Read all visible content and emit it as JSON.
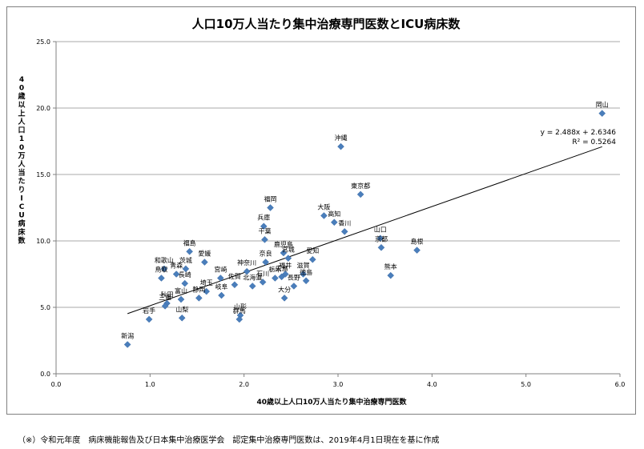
{
  "chart_data": {
    "type": "scatter",
    "title": "人口10万人当たり集中治療専門医数とICU病床数",
    "xlabel": "40歳以上人口10万人当たり集中治療専門医数",
    "ylabel": "40歳以上人口10万人当たりICU病床数",
    "xlim": [
      0.0,
      6.0
    ],
    "ylim": [
      0.0,
      25.0
    ],
    "x_ticks": [
      "0.0",
      "1.0",
      "2.0",
      "3.0",
      "4.0",
      "5.0",
      "6.0"
    ],
    "y_ticks": [
      "0.0",
      "5.0",
      "10.0",
      "15.0",
      "20.0",
      "25.0"
    ],
    "grid": "horizontal",
    "marker_color": "#4a7ebb",
    "trendline": {
      "slope": 2.488,
      "intercept": 2.6346,
      "equation": "y = 2.488x + 2.6346",
      "r2": "R² = 0.5264"
    },
    "points": [
      {
        "label": "岡山",
        "x": 5.81,
        "y": 19.6
      },
      {
        "label": "沖縄",
        "x": 3.03,
        "y": 17.1
      },
      {
        "label": "東京都",
        "x": 3.24,
        "y": 13.5
      },
      {
        "label": "福岡",
        "x": 2.28,
        "y": 12.5
      },
      {
        "label": "大阪",
        "x": 2.85,
        "y": 11.9
      },
      {
        "label": "兵庫",
        "x": 2.21,
        "y": 11.1
      },
      {
        "label": "高知",
        "x": 2.96,
        "y": 11.4
      },
      {
        "label": "千葉",
        "x": 2.22,
        "y": 10.1
      },
      {
        "label": "香川",
        "x": 3.07,
        "y": 10.7
      },
      {
        "label": "山口",
        "x": 3.45,
        "y": 10.2
      },
      {
        "label": "島根",
        "x": 3.84,
        "y": 9.3
      },
      {
        "label": "京都",
        "x": 3.46,
        "y": 9.5
      },
      {
        "label": "鹿児島",
        "x": 2.42,
        "y": 9.1
      },
      {
        "label": "愛知",
        "x": 2.73,
        "y": 8.6
      },
      {
        "label": "福島",
        "x": 1.42,
        "y": 9.2
      },
      {
        "label": "愛媛",
        "x": 1.58,
        "y": 8.4
      },
      {
        "label": "和歌山",
        "x": 1.15,
        "y": 7.9
      },
      {
        "label": "茨城",
        "x": 1.38,
        "y": 7.9
      },
      {
        "label": "奈良",
        "x": 2.23,
        "y": 8.4
      },
      {
        "label": "神奈川",
        "x": 2.03,
        "y": 7.7
      },
      {
        "label": "宮崎",
        "x": 1.75,
        "y": 7.2
      },
      {
        "label": "青森",
        "x": 1.28,
        "y": 7.5
      },
      {
        "label": "鳥取",
        "x": 1.12,
        "y": 7.2
      },
      {
        "label": "滋賀",
        "x": 2.63,
        "y": 7.5
      },
      {
        "label": "栃木",
        "x": 2.33,
        "y": 7.2
      },
      {
        "label": "広島",
        "x": 2.4,
        "y": 7.3
      },
      {
        "label": "宮城",
        "x": 2.47,
        "y": 8.7
      },
      {
        "label": "埼玉",
        "x": 1.6,
        "y": 6.2
      },
      {
        "label": "長崎",
        "x": 1.37,
        "y": 6.8
      },
      {
        "label": "佐賀",
        "x": 1.9,
        "y": 6.7
      },
      {
        "label": "石川",
        "x": 2.2,
        "y": 6.9
      },
      {
        "label": "福井",
        "x": 2.44,
        "y": 7.5
      },
      {
        "label": "徳島",
        "x": 2.66,
        "y": 7.0
      },
      {
        "label": "熊本",
        "x": 3.56,
        "y": 7.4
      },
      {
        "label": "北海道",
        "x": 2.09,
        "y": 6.6
      },
      {
        "label": "秋田",
        "x": 1.18,
        "y": 5.3
      },
      {
        "label": "富山",
        "x": 1.33,
        "y": 5.6
      },
      {
        "label": "静岡",
        "x": 1.52,
        "y": 5.7
      },
      {
        "label": "岐阜",
        "x": 1.76,
        "y": 5.9
      },
      {
        "label": "長野",
        "x": 2.53,
        "y": 6.6
      },
      {
        "label": "大分",
        "x": 2.43,
        "y": 5.7
      },
      {
        "label": "山形",
        "x": 1.96,
        "y": 4.4
      },
      {
        "label": "群馬",
        "x": 1.95,
        "y": 4.1
      },
      {
        "label": "三重",
        "x": 1.16,
        "y": 5.1
      },
      {
        "label": "山梨",
        "x": 1.34,
        "y": 4.2
      },
      {
        "label": "岩手",
        "x": 0.99,
        "y": 4.1
      },
      {
        "label": "新潟",
        "x": 0.76,
        "y": 2.2
      }
    ]
  },
  "footnote": "（※）令和元年度　病床機能報告及び日本集中治療医学会　認定集中治療専門医数は、2019年4月1日現在を基に作成"
}
